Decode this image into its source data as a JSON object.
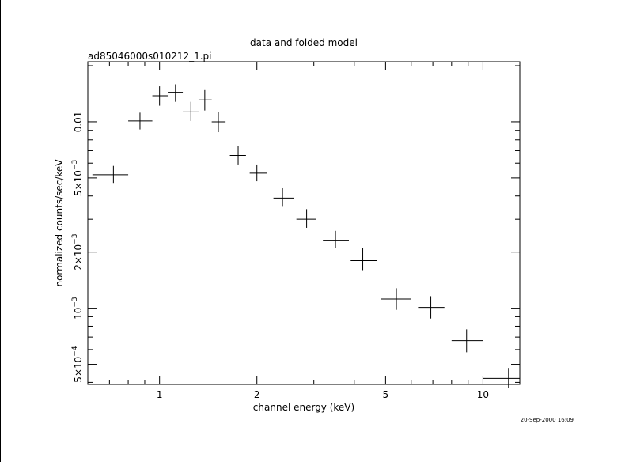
{
  "chart_data": {
    "type": "scatter",
    "title": "data and folded model",
    "subtitle": "ad85046000s010212_1.pi",
    "xlabel": "channel energy (keV)",
    "ylabel": "normalized counts/sec/keV",
    "x_scale": "log",
    "y_scale": "log",
    "xlim": [
      0.6,
      13.0
    ],
    "ylim": [
      0.00039,
      0.021
    ],
    "x_ticks": [
      {
        "value": 1,
        "label": "1"
      },
      {
        "value": 2,
        "label": "2"
      },
      {
        "value": 5,
        "label": "5"
      },
      {
        "value": 10,
        "label": "10"
      }
    ],
    "y_ticks": [
      {
        "value": 0.0005,
        "mantissa": "5×10",
        "exp": "−4"
      },
      {
        "value": 0.001,
        "mantissa": "10",
        "exp": "−3"
      },
      {
        "value": 0.002,
        "mantissa": "2×10",
        "exp": "−3"
      },
      {
        "value": 0.005,
        "mantissa": "5×10",
        "exp": "−3"
      },
      {
        "value": 0.01,
        "mantissa": "0.01",
        "exp": ""
      }
    ],
    "points": [
      {
        "x": 0.72,
        "xlo": 0.62,
        "xhi": 0.8,
        "y": 0.0052,
        "ylo": 0.0047,
        "yhi": 0.0058
      },
      {
        "x": 0.87,
        "xlo": 0.8,
        "xhi": 0.95,
        "y": 0.0101,
        "ylo": 0.0091,
        "yhi": 0.0112
      },
      {
        "x": 1.0,
        "xlo": 0.95,
        "xhi": 1.06,
        "y": 0.0138,
        "ylo": 0.0122,
        "yhi": 0.0155
      },
      {
        "x": 1.12,
        "xlo": 1.06,
        "xhi": 1.18,
        "y": 0.0144,
        "ylo": 0.0128,
        "yhi": 0.0159
      },
      {
        "x": 1.25,
        "xlo": 1.18,
        "xhi": 1.32,
        "y": 0.0113,
        "ylo": 0.0101,
        "yhi": 0.0128
      },
      {
        "x": 1.38,
        "xlo": 1.32,
        "xhi": 1.45,
        "y": 0.0131,
        "ylo": 0.0115,
        "yhi": 0.0148
      },
      {
        "x": 1.52,
        "xlo": 1.45,
        "xhi": 1.6,
        "y": 0.01,
        "ylo": 0.0088,
        "yhi": 0.0113
      },
      {
        "x": 1.75,
        "xlo": 1.65,
        "xhi": 1.85,
        "y": 0.0066,
        "ylo": 0.0059,
        "yhi": 0.0074
      },
      {
        "x": 2.0,
        "xlo": 1.9,
        "xhi": 2.15,
        "y": 0.0053,
        "ylo": 0.0048,
        "yhi": 0.0059
      },
      {
        "x": 2.4,
        "xlo": 2.25,
        "xhi": 2.6,
        "y": 0.0039,
        "ylo": 0.0035,
        "yhi": 0.0044
      },
      {
        "x": 2.85,
        "xlo": 2.65,
        "xhi": 3.05,
        "y": 0.003,
        "ylo": 0.0027,
        "yhi": 0.0034
      },
      {
        "x": 3.5,
        "xlo": 3.2,
        "xhi": 3.85,
        "y": 0.0023,
        "ylo": 0.0021,
        "yhi": 0.0026
      },
      {
        "x": 4.25,
        "xlo": 3.9,
        "xhi": 4.7,
        "y": 0.0018,
        "ylo": 0.0016,
        "yhi": 0.0021
      },
      {
        "x": 5.4,
        "xlo": 4.85,
        "xhi": 6.0,
        "y": 0.00112,
        "ylo": 0.00098,
        "yhi": 0.00128
      },
      {
        "x": 6.9,
        "xlo": 6.3,
        "xhi": 7.6,
        "y": 0.00101,
        "ylo": 0.00088,
        "yhi": 0.00116
      },
      {
        "x": 8.9,
        "xlo": 8.0,
        "xhi": 10.0,
        "y": 0.00067,
        "ylo": 0.00058,
        "yhi": 0.00077
      },
      {
        "x": 12.0,
        "xlo": 10.0,
        "xhi": 13.0,
        "y": 0.00042,
        "ylo": 0.000372,
        "yhi": 0.000478
      }
    ]
  },
  "footer": {
    "timestamp": "20-Sep-2000 16:09"
  }
}
